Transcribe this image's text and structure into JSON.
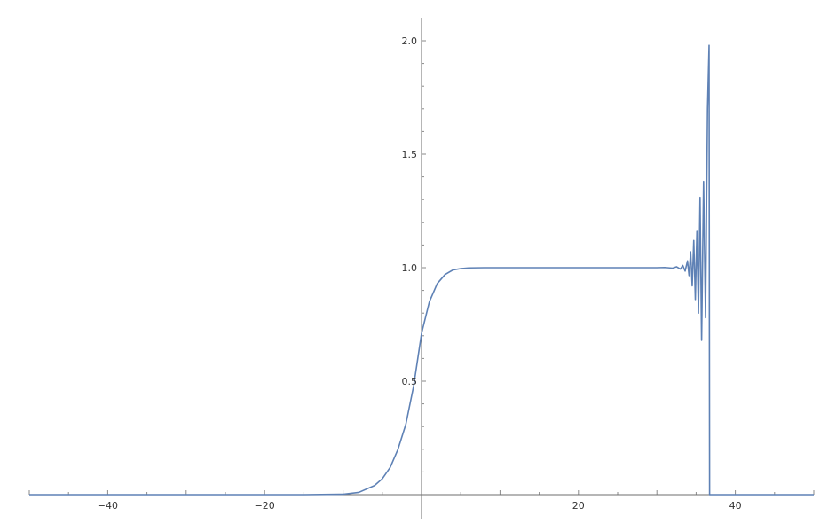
{
  "chart_data": {
    "type": "line",
    "title": "",
    "xlabel": "",
    "ylabel": "",
    "xlim": [
      -50,
      50
    ],
    "ylim": [
      0,
      2.1
    ],
    "grid": false,
    "line_color": "#5E81B5",
    "x_ticks": [
      {
        "value": -40,
        "label": "−40"
      },
      {
        "value": -20,
        "label": "−20"
      },
      {
        "value": 20,
        "label": "20"
      },
      {
        "value": 40,
        "label": "40"
      }
    ],
    "y_ticks": [
      {
        "value": 0.5,
        "label": "0.5"
      },
      {
        "value": 1.0,
        "label": "1.0"
      },
      {
        "value": 1.5,
        "label": "1.5"
      },
      {
        "value": 2.0,
        "label": "2.0"
      }
    ],
    "series": [
      {
        "points": [
          [
            -50,
            0
          ],
          [
            -15,
            0
          ],
          [
            -10,
            0.002
          ],
          [
            -8,
            0.01
          ],
          [
            -6,
            0.04
          ],
          [
            -5,
            0.07
          ],
          [
            -4,
            0.12
          ],
          [
            -3,
            0.2
          ],
          [
            -2,
            0.31
          ],
          [
            -1,
            0.48
          ],
          [
            0,
            0.71
          ],
          [
            1,
            0.85
          ],
          [
            2,
            0.93
          ],
          [
            3,
            0.97
          ],
          [
            4,
            0.99
          ],
          [
            5,
            0.996
          ],
          [
            6,
            0.999
          ],
          [
            8,
            1.0
          ],
          [
            20,
            1.0
          ],
          [
            30,
            1.0
          ],
          [
            31,
            1.001
          ],
          [
            32,
            0.998
          ],
          [
            32.5,
            1.004
          ],
          [
            33,
            0.994
          ],
          [
            33.3,
            1.01
          ],
          [
            33.6,
            0.985
          ],
          [
            33.9,
            1.03
          ],
          [
            34.1,
            0.965
          ],
          [
            34.3,
            1.07
          ],
          [
            34.5,
            0.92
          ],
          [
            34.7,
            1.12
          ],
          [
            34.9,
            0.86
          ],
          [
            35.1,
            1.16
          ],
          [
            35.3,
            0.8
          ],
          [
            35.5,
            1.31
          ],
          [
            35.7,
            0.68
          ],
          [
            35.95,
            1.38
          ],
          [
            36.2,
            0.78
          ],
          [
            36.45,
            1.7
          ],
          [
            36.65,
            1.98
          ],
          [
            36.72,
            0
          ],
          [
            37,
            0
          ],
          [
            50,
            0
          ]
        ]
      }
    ]
  }
}
